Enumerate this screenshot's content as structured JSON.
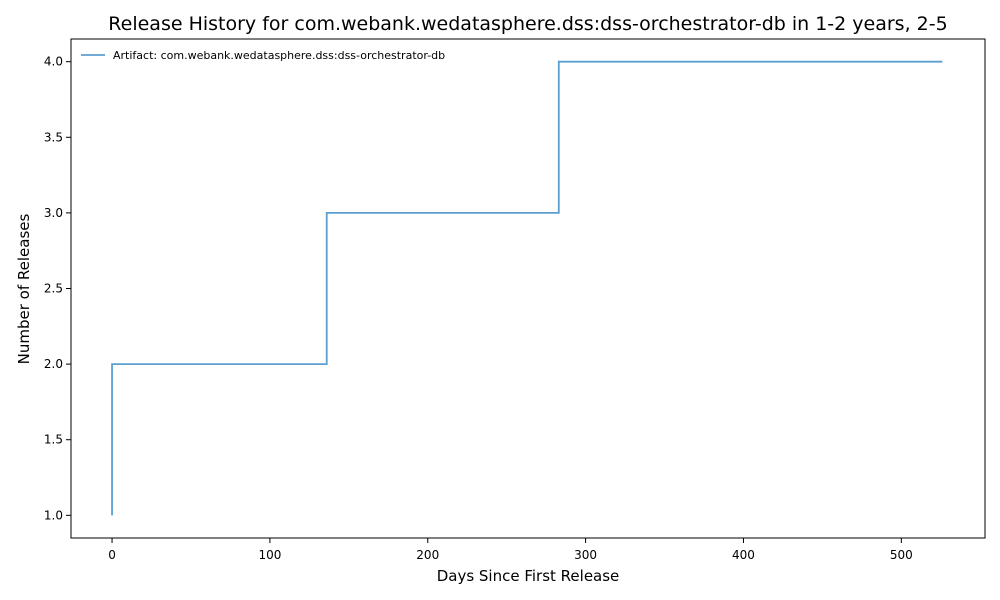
{
  "chart_data": {
    "type": "line",
    "step": "post",
    "title": "Release History for com.webank.wedatasphere.dss:dss-orchestrator-db in 1-2 years, 2-5",
    "xlabel": "Days Since First Release",
    "ylabel": "Number of Releases",
    "xlim": [
      -26,
      553
    ],
    "ylim": [
      0.85,
      4.15
    ],
    "xticks": [
      0,
      100,
      200,
      300,
      400,
      500
    ],
    "xtick_labels": [
      "0",
      "100",
      "200",
      "300",
      "400",
      "500"
    ],
    "yticks": [
      1.0,
      1.5,
      2.0,
      2.5,
      3.0,
      3.5,
      4.0
    ],
    "ytick_labels": [
      "1.0",
      "1.5",
      "2.0",
      "2.5",
      "3.0",
      "3.5",
      "4.0"
    ],
    "grid": false,
    "legend_position": "upper-left",
    "series": [
      {
        "name": "Artifact: com.webank.wedatasphere.dss:dss-orchestrator-db",
        "color": "#5b9fcf",
        "x": [
          0,
          0,
          136,
          283,
          526
        ],
        "y": [
          1,
          2,
          3,
          4,
          4
        ]
      }
    ]
  }
}
